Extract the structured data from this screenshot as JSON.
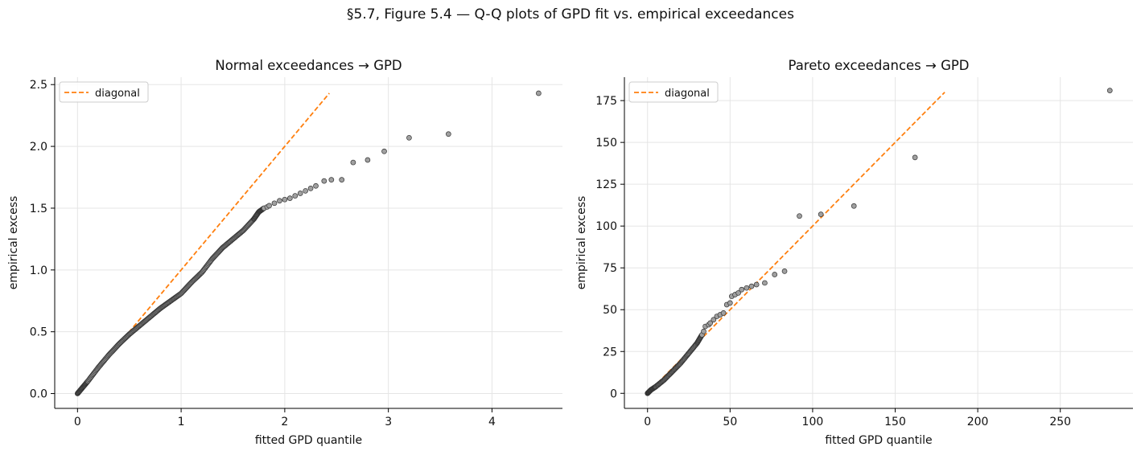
{
  "figure": {
    "suptitle": "§5.7, Figure 5.4 — Q-Q plots of GPD fit vs. empirical exceedances"
  },
  "colors": {
    "diagonal": "#ff7f0e",
    "points_fill": "#a0a0a0",
    "points_edge": "#333333",
    "grid": "#e5e5e5"
  },
  "chart_data": [
    {
      "type": "scatter",
      "title": "Normal exceedances → GPD",
      "xlabel": "fitted GPD quantile",
      "ylabel": "empirical excess",
      "xlim": [
        -0.22,
        4.68
      ],
      "ylim": [
        -0.12,
        2.56
      ],
      "xticks": [
        0,
        1,
        2,
        3,
        4
      ],
      "xtick_labels": [
        "0",
        "1",
        "2",
        "3",
        "4"
      ],
      "yticks": [
        0,
        0.5,
        1.0,
        1.5,
        2.0,
        2.5
      ],
      "ytick_labels": [
        "0.0",
        "0.5",
        "1.0",
        "1.5",
        "2.0",
        "2.5"
      ],
      "grid": true,
      "legend": {
        "position": "top-left",
        "entries": [
          "diagonal"
        ]
      },
      "diagonal": {
        "name": "diagonal",
        "x": [
          0,
          2.43
        ],
        "y": [
          0,
          2.43
        ]
      },
      "dense_curve": [
        [
          0,
          0
        ],
        [
          0.05,
          0.05
        ],
        [
          0.1,
          0.1
        ],
        [
          0.2,
          0.21
        ],
        [
          0.3,
          0.31
        ],
        [
          0.4,
          0.4
        ],
        [
          0.5,
          0.48
        ],
        [
          0.6,
          0.55
        ],
        [
          0.7,
          0.62
        ],
        [
          0.8,
          0.69
        ],
        [
          0.9,
          0.75
        ],
        [
          1.0,
          0.81
        ],
        [
          1.1,
          0.9
        ],
        [
          1.2,
          0.98
        ],
        [
          1.3,
          1.09
        ],
        [
          1.4,
          1.18
        ],
        [
          1.5,
          1.25
        ],
        [
          1.6,
          1.32
        ],
        [
          1.7,
          1.41
        ],
        [
          1.75,
          1.47
        ],
        [
          1.8,
          1.5
        ]
      ],
      "sparse_points": [
        [
          1.83,
          1.51
        ],
        [
          1.85,
          1.52
        ],
        [
          1.9,
          1.54
        ],
        [
          1.95,
          1.56
        ],
        [
          2.0,
          1.57
        ],
        [
          2.05,
          1.58
        ],
        [
          2.1,
          1.6
        ],
        [
          2.15,
          1.62
        ],
        [
          2.2,
          1.64
        ],
        [
          2.25,
          1.66
        ],
        [
          2.3,
          1.68
        ],
        [
          2.38,
          1.72
        ],
        [
          2.45,
          1.73
        ],
        [
          2.55,
          1.73
        ],
        [
          2.66,
          1.87
        ],
        [
          2.8,
          1.89
        ],
        [
          2.96,
          1.96
        ],
        [
          3.2,
          2.07
        ],
        [
          3.58,
          2.1
        ],
        [
          4.45,
          2.43
        ]
      ]
    },
    {
      "type": "scatter",
      "title": "Pareto exceedances → GPD",
      "xlabel": "fitted GPD quantile",
      "ylabel": "empirical excess",
      "xlim": [
        -14,
        294
      ],
      "ylim": [
        -9,
        189
      ],
      "xticks": [
        0,
        50,
        100,
        150,
        200,
        250
      ],
      "xtick_labels": [
        "0",
        "50",
        "100",
        "150",
        "200",
        "250"
      ],
      "yticks": [
        0,
        25,
        50,
        75,
        100,
        125,
        150,
        175
      ],
      "ytick_labels": [
        "0",
        "25",
        "50",
        "75",
        "100",
        "125",
        "150",
        "175"
      ],
      "grid": true,
      "legend": {
        "position": "top-left",
        "entries": [
          "diagonal"
        ]
      },
      "diagonal": {
        "name": "diagonal",
        "x": [
          0,
          180
        ],
        "y": [
          0,
          180
        ]
      },
      "dense_curve": [
        [
          0,
          0
        ],
        [
          2,
          2
        ],
        [
          5,
          4
        ],
        [
          10,
          8
        ],
        [
          15,
          13
        ],
        [
          20,
          18
        ],
        [
          25,
          24
        ],
        [
          30,
          30
        ],
        [
          33,
          35
        ]
      ],
      "sparse_points": [
        [
          34,
          37
        ],
        [
          35,
          40
        ],
        [
          37,
          41
        ],
        [
          38,
          42
        ],
        [
          40,
          44
        ],
        [
          42,
          46
        ],
        [
          44,
          47
        ],
        [
          46,
          48
        ],
        [
          48,
          53
        ],
        [
          50,
          54
        ],
        [
          51,
          58
        ],
        [
          53,
          59
        ],
        [
          55,
          60
        ],
        [
          57,
          62
        ],
        [
          60,
          63
        ],
        [
          63,
          64
        ],
        [
          66,
          65
        ],
        [
          71,
          66
        ],
        [
          77,
          71
        ],
        [
          83,
          73
        ],
        [
          92,
          106
        ],
        [
          105,
          107
        ],
        [
          125,
          112
        ],
        [
          162,
          141
        ],
        [
          280,
          181
        ]
      ]
    }
  ]
}
